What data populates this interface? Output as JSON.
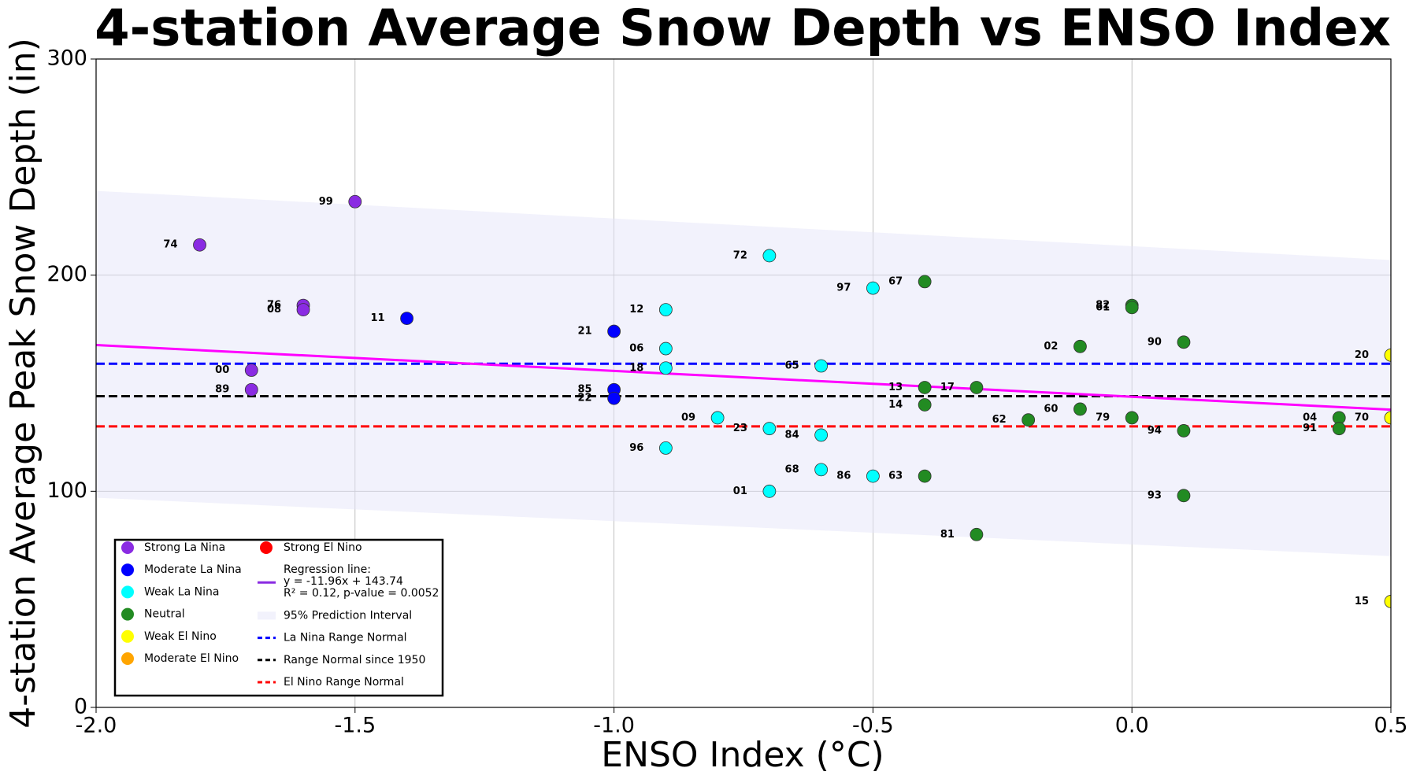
{
  "chart_data": {
    "type": "scatter",
    "title": "4-station Average Snow Depth vs ENSO Index",
    "x_label": "ENSO Index (°C)",
    "y_label": "4-station Average Peak Snow Depth (in)",
    "xlim": [
      -2.0,
      0.5
    ],
    "xticks": [
      {
        "value": -2.0,
        "label": "-2.0"
      },
      {
        "value": -1.5,
        "label": "-1.5"
      },
      {
        "value": -1.0,
        "label": "-1.0"
      },
      {
        "value": -0.5,
        "label": "-0.5"
      },
      {
        "value": 0.0,
        "label": "0.0"
      },
      {
        "value": 0.5,
        "label": "0.5"
      }
    ],
    "ylim": [
      0,
      300
    ],
    "yticks": [
      0,
      100,
      200,
      300
    ],
    "grid": true,
    "legend": "lower left",
    "series": [
      {
        "name": "Strong La Nina",
        "color": "#8a2be2",
        "x": [
          -1.8,
          -1.5,
          -1.6,
          -1.6,
          -1.7,
          -1.7
        ],
        "values": [
          214,
          234,
          186,
          184,
          156,
          147
        ],
        "labels": [
          "74",
          "99",
          "76",
          "08",
          "00",
          "89"
        ]
      },
      {
        "name": "Moderate La Nina",
        "color": "#0000ff",
        "x": [
          -1.4,
          -1.0,
          -1.0,
          -1.0
        ],
        "values": [
          180,
          174,
          147,
          143
        ],
        "labels": [
          "11",
          "21",
          "85",
          "22"
        ]
      },
      {
        "name": "Weak La Nina",
        "color": "#00ffff",
        "x": [
          -0.7,
          -0.5,
          -0.9,
          -0.9,
          -0.9,
          -0.6,
          -0.8,
          -0.7,
          -0.6,
          -0.9,
          -0.6,
          -0.5,
          -0.7
        ],
        "values": [
          209,
          194,
          184,
          166,
          157,
          158,
          134,
          129,
          126,
          120,
          110,
          107,
          100
        ],
        "labels": [
          "72",
          "97",
          "12",
          "06",
          "18",
          "65",
          "09",
          "23",
          "84",
          "96",
          "68",
          "86",
          "01"
        ]
      },
      {
        "name": "Neutral",
        "color": "#228b22",
        "x": [
          -0.4,
          0.0,
          0.0,
          -0.1,
          0.1,
          -0.4,
          -0.3,
          -0.4,
          -0.1,
          0.0,
          -0.2,
          0.4,
          0.4,
          0.1,
          -0.4,
          0.1,
          -0.3
        ],
        "values": [
          197,
          186,
          185,
          167,
          169,
          148,
          148,
          140,
          138,
          134,
          133,
          134,
          129,
          128,
          107,
          98,
          80
        ],
        "labels": [
          "67",
          "82",
          "61",
          "02",
          "90",
          "13",
          "17",
          "14",
          "60",
          "79",
          "62",
          "04",
          "91",
          "94",
          "63",
          "93",
          "81"
        ]
      },
      {
        "name": "Weak El Nino",
        "color": "#ffff00",
        "x": [
          0.5,
          0.5,
          0.5
        ],
        "values": [
          163,
          134,
          49
        ],
        "labels": [
          "20",
          "70",
          "15"
        ]
      },
      {
        "name": "Moderate El Nino",
        "color": "#ffa500",
        "x": [],
        "values": [],
        "labels": []
      },
      {
        "name": "Strong El Nino",
        "color": "#ff0000",
        "x": [],
        "values": [],
        "labels": []
      }
    ],
    "regression": {
      "slope": -11.96,
      "intercept": 143.74,
      "color": "#ff00ff",
      "legend_lines": [
        "Regression line:",
        "y = -11.96x + 143.74",
        "R² = 0.12, p-value = 0.0052"
      ]
    },
    "interval": {
      "name": "95% Prediction Interval",
      "color": "#e6e6fa",
      "x": [
        -2.0,
        0.5
      ],
      "upper": [
        239,
        207
      ],
      "lower": [
        97,
        70
      ]
    },
    "reference_lines": [
      {
        "name": "La Nina Range Normal",
        "value": 159,
        "color": "#0000ff"
      },
      {
        "name": "Range Normal since 1950",
        "value": 144,
        "color": "#000000"
      },
      {
        "name": "El Nino Range Normal",
        "value": 130,
        "color": "#ff0000"
      }
    ]
  }
}
